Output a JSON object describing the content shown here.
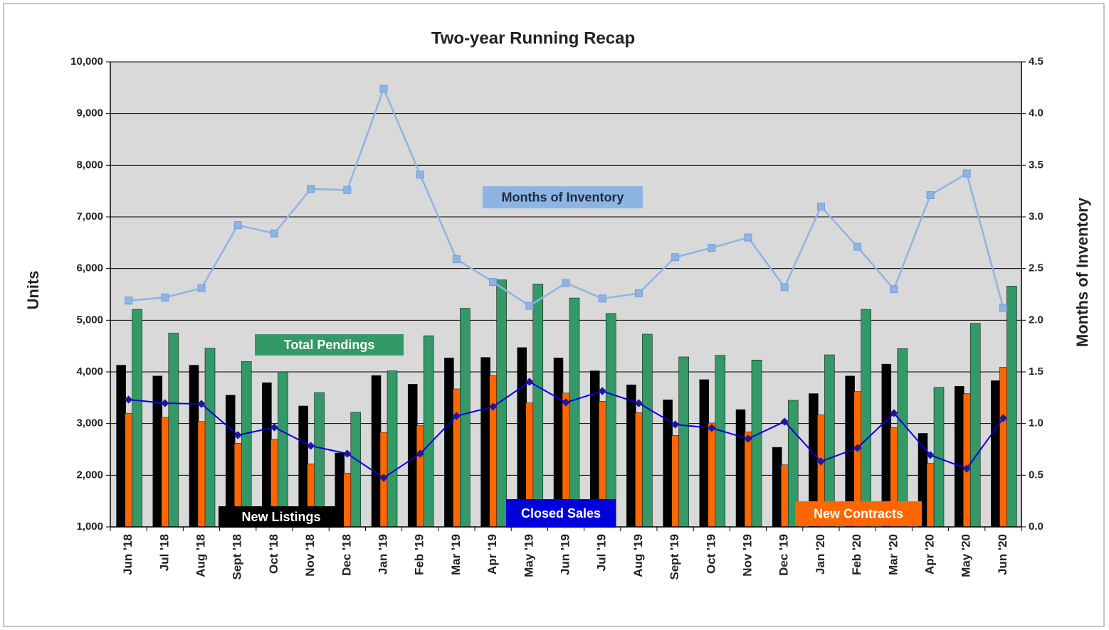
{
  "chart_data": {
    "type": "bar",
    "title": "Two-year Running Recap",
    "y_label": "Units",
    "y2_label": "Months of Inventory",
    "categories": [
      "Jun '18",
      "Jul '18",
      "Aug '18",
      "Sept '18",
      "Oct '18",
      "Nov '18",
      "Dec '18",
      "Jan '19",
      "Feb '19",
      "Mar '19",
      "Apr '19",
      "May '19",
      "Jun '19",
      "Jul '19",
      "Aug '19",
      "Sept '19",
      "Oct '19",
      "Nov '19",
      "Dec '19",
      "Jan '20",
      "Feb '20",
      "Mar '20",
      "Apr '20",
      "May '20",
      "Jun '20"
    ],
    "ylim": [
      1000,
      10000
    ],
    "yticks": [
      {
        "value": 1000,
        "label": "1,000"
      },
      {
        "value": 2000,
        "label": "2,000"
      },
      {
        "value": 3000,
        "label": "3,000"
      },
      {
        "value": 4000,
        "label": "4,000"
      },
      {
        "value": 5000,
        "label": "5,000"
      },
      {
        "value": 6000,
        "label": "6,000"
      },
      {
        "value": 7000,
        "label": "7,000"
      },
      {
        "value": 8000,
        "label": "8,000"
      },
      {
        "value": 9000,
        "label": "9,000"
      },
      {
        "value": 10000,
        "label": "10,000"
      }
    ],
    "y2lim": [
      0,
      4.5
    ],
    "y2ticks": [
      {
        "value": 0,
        "label": "0.0"
      },
      0.5,
      {
        "value": 1,
        "label": "1.0"
      },
      1.5,
      {
        "value": 2,
        "label": "2.0"
      },
      2.5,
      {
        "value": 3,
        "label": "3.0"
      },
      3.5,
      {
        "value": 4,
        "label": "4.0"
      },
      4.5
    ],
    "grid": true,
    "series": [
      {
        "name": "New Listings",
        "type": "bar",
        "color": "#000000",
        "values": [
          4130,
          3920,
          4130,
          3550,
          3790,
          3340,
          2430,
          3930,
          3760,
          4270,
          4280,
          4470,
          4270,
          4020,
          3750,
          3460,
          3850,
          3270,
          2540,
          3580,
          3920,
          4150,
          2810,
          3720,
          3830
        ]
      },
      {
        "name": "New Contracts",
        "type": "bar",
        "color": "#ff6600",
        "values": [
          3200,
          3120,
          3040,
          2620,
          2700,
          2220,
          2040,
          2830,
          2960,
          3670,
          3930,
          3400,
          3590,
          3430,
          3210,
          2770,
          3010,
          2840,
          2200,
          3170,
          3620,
          2920,
          2230,
          3580,
          4090
        ]
      },
      {
        "name": "Total Pendings",
        "type": "bar",
        "color": "#339966",
        "values": [
          5210,
          4750,
          4460,
          4200,
          4000,
          3600,
          3220,
          4020,
          4700,
          5230,
          5780,
          5700,
          5430,
          5130,
          4730,
          4290,
          4320,
          4230,
          3450,
          4330,
          5210,
          4450,
          3700,
          4940,
          5660
        ]
      },
      {
        "name": "Closed Sales",
        "type": "line",
        "color": "#0000dd",
        "values": [
          3463,
          3394,
          3380,
          2775,
          2927,
          2569,
          2417,
          1950,
          2417,
          3147,
          3326,
          3807,
          3408,
          3628,
          3394,
          2982,
          2913,
          2706,
          3037,
          2266,
          2528,
          3202,
          2390,
          2128,
          3106
        ]
      },
      {
        "name": "Months of Inventory",
        "type": "line",
        "axis": "y2",
        "color": "#8eb4e3",
        "values": [
          2.19,
          2.22,
          2.31,
          2.92,
          2.84,
          3.27,
          3.26,
          4.24,
          3.41,
          2.59,
          2.37,
          2.14,
          2.36,
          2.21,
          2.26,
          2.61,
          2.7,
          2.8,
          2.32,
          3.1,
          2.71,
          2.3,
          3.21,
          3.42,
          2.12
        ]
      }
    ]
  }
}
